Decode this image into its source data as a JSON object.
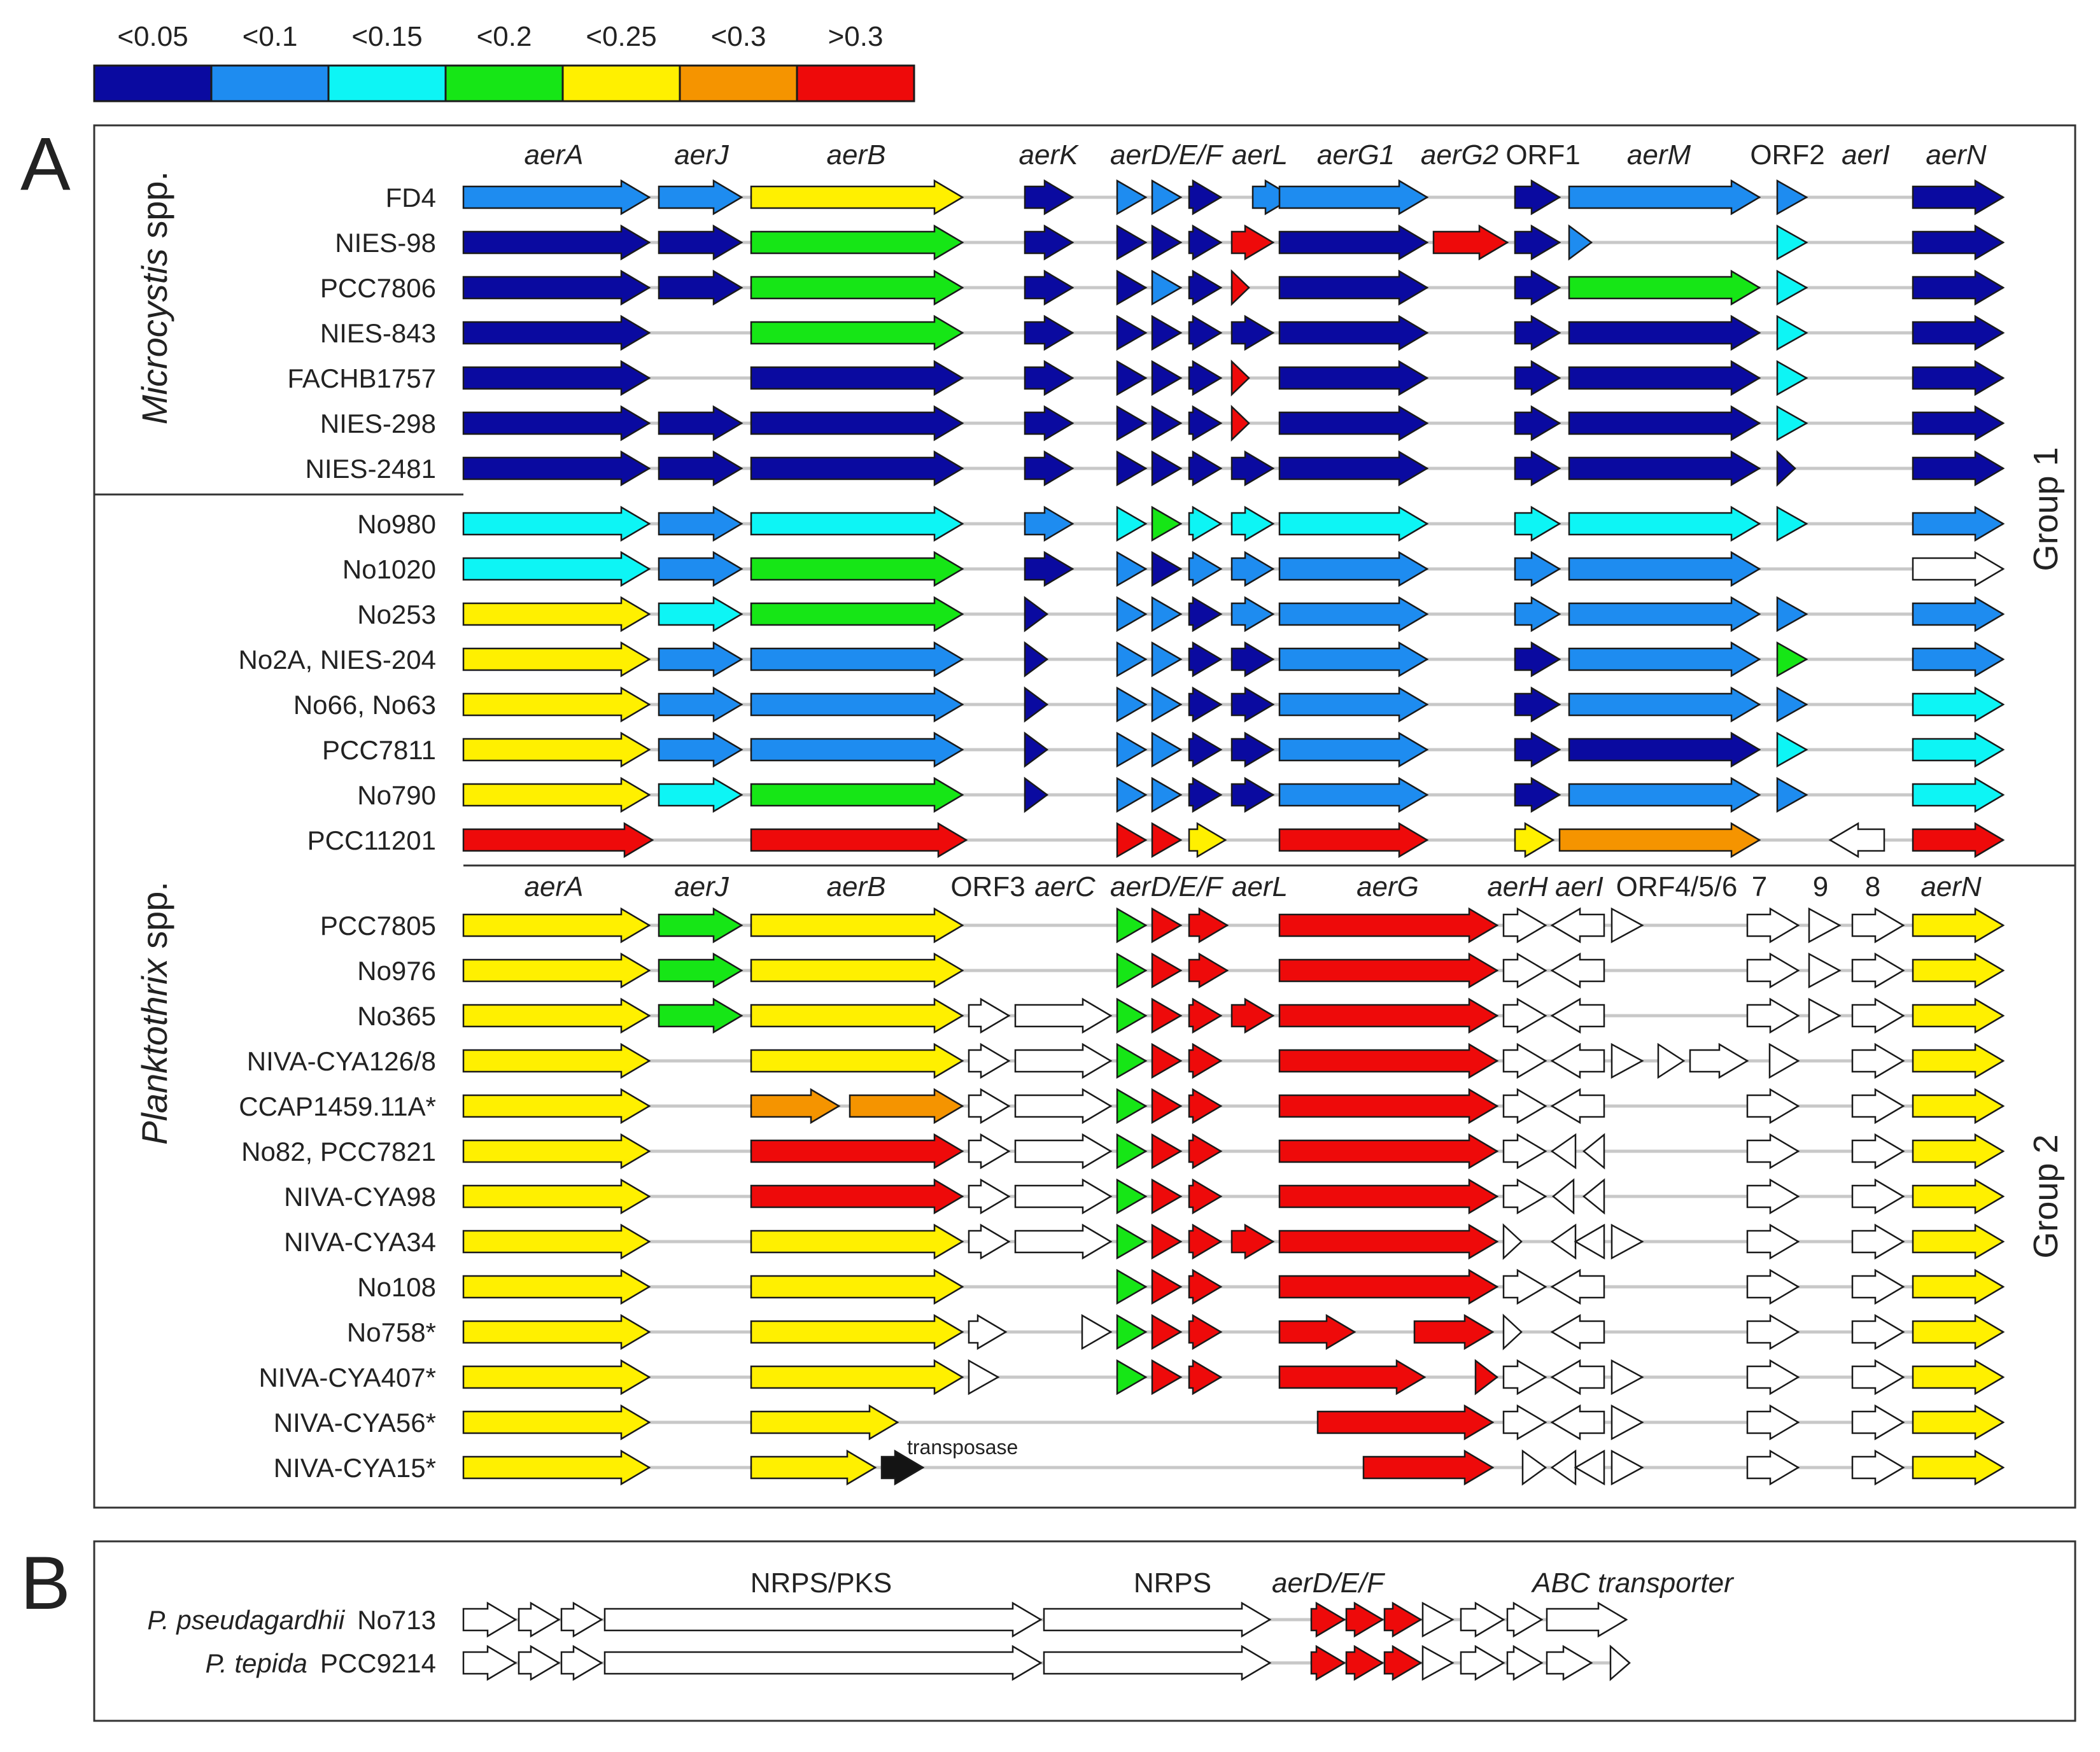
{
  "colors": {
    "c1": "#0a0aa0",
    "c2": "#1e8cf0",
    "c3": "#0df5f5",
    "c4": "#16e616",
    "c5": "#fff000",
    "c6": "#f59400",
    "c7": "#ee0a0a",
    "w": "#ffffff",
    "k": "#141414"
  },
  "legend": {
    "items": [
      {
        "label": "<0.05",
        "color": "c1"
      },
      {
        "label": "<0.1",
        "color": "c2"
      },
      {
        "label": "<0.15",
        "color": "c3"
      },
      {
        "label": "<0.2",
        "color": "c4"
      },
      {
        "label": "<0.25",
        "color": "c5"
      },
      {
        "label": "<0.3",
        "color": "c6"
      },
      {
        "label": ">0.3",
        "color": "c7"
      }
    ]
  },
  "panel_a": {
    "letter": "A",
    "group1_label": "Group 1",
    "group2_label": "Group 2",
    "genus_microcystis": {
      "name": "Microcystis",
      "suffix": " spp."
    },
    "genus_planktothrix": {
      "name": "Planktothrix",
      "suffix": " spp."
    },
    "transposase_label": "transposase",
    "gene_headers_group1": [
      {
        "text": "aerA",
        "italic": true
      },
      {
        "text": "aerJ",
        "italic": true
      },
      {
        "text": "aerB",
        "italic": true
      },
      {
        "text": "aerK",
        "italic": true
      },
      {
        "text": "aerD/E/F",
        "italic": true
      },
      {
        "text": "aerL",
        "italic": true
      },
      {
        "text": "aerG1",
        "italic": true
      },
      {
        "text": "aerG2",
        "italic": true
      },
      {
        "text": "ORF1",
        "italic": false
      },
      {
        "text": "aerM",
        "italic": true
      },
      {
        "text": "ORF2",
        "italic": false
      },
      {
        "text": "aerI",
        "italic": true
      },
      {
        "text": "aerN",
        "italic": true
      }
    ],
    "gene_headers_group2": [
      {
        "text": "aerA",
        "italic": true
      },
      {
        "text": "aerJ",
        "italic": true
      },
      {
        "text": "aerB",
        "italic": true
      },
      {
        "text": "ORF3",
        "italic": false
      },
      {
        "text": "aerC",
        "italic": true
      },
      {
        "text": "aerD/E/F",
        "italic": true
      },
      {
        "text": "aerL",
        "italic": true
      },
      {
        "text": "aerG",
        "italic": true
      },
      {
        "text": "aerH",
        "italic": true
      },
      {
        "text": "aerI",
        "italic": true
      },
      {
        "text": "ORF4/5/6",
        "italic": false
      },
      {
        "text": "7",
        "italic": false
      },
      {
        "text": "9",
        "italic": false
      },
      {
        "text": "8",
        "italic": false
      },
      {
        "text": "aerN",
        "italic": true
      }
    ],
    "strains_microcystis": [
      "FD4",
      "NIES-98",
      "PCC7806",
      "NIES-843",
      "FACHB1757",
      "NIES-298",
      "NIES-2481"
    ],
    "strains_planktothrix_group1": [
      "No980",
      "No1020",
      "No253",
      "No2A, NIES-204",
      "No66, No63",
      "PCC7811",
      "No790",
      "PCC11201"
    ],
    "strains_planktothrix_group2": [
      "PCC7805",
      "No976",
      "No365",
      "NIVA-CYA126/8",
      "CCAP1459.11A*",
      "No82, PCC7821",
      "NIVA-CYA98",
      "NIVA-CYA34",
      "No108",
      "No758*",
      "NIVA-CYA407*",
      "NIVA-CYA56*",
      "NIVA-CYA15*"
    ],
    "group1_colors": [
      [
        "c2",
        "c2",
        "c5",
        "c1",
        "c2",
        "c2",
        "c1",
        "c2",
        "c2",
        "c1",
        "c2",
        "c2",
        "c1"
      ],
      [
        "c1",
        "c1",
        "c4",
        "c1",
        "c1",
        "c1",
        "c1",
        "c7",
        "c1",
        "c7",
        "c1",
        "c2",
        "c3",
        "c1"
      ],
      [
        "c1",
        "c1",
        "c4",
        "c1",
        "c1",
        "c2",
        "c1",
        "c7",
        "c1",
        "c1",
        "c4",
        "c3",
        "c1"
      ],
      [
        "c1",
        "c4",
        "c1",
        "c1",
        "c1",
        "c1",
        "c1",
        "c1",
        "c1",
        "c1",
        "c3",
        "c1"
      ],
      [
        "c1",
        "c1",
        "c1",
        "c1",
        "c1",
        "c1",
        "c7",
        "c1",
        "c1",
        "c1",
        "c3",
        "c1"
      ],
      [
        "c1",
        "c1",
        "c1",
        "c1",
        "c1",
        "c1",
        "c1",
        "c7",
        "c1",
        "c1",
        "c1",
        "c3",
        "c1"
      ],
      [
        "c1",
        "c1",
        "c1",
        "c1",
        "c1",
        "c1",
        "c1",
        "c1",
        "c1",
        "c1",
        "c1",
        "c1",
        "c1"
      ],
      [
        "c3",
        "c2",
        "c3",
        "c2",
        "c3",
        "c4",
        "c3",
        "c3",
        "c3",
        "c3",
        "c3",
        "c3",
        "c2"
      ],
      [
        "c3",
        "c2",
        "c4",
        "c1",
        "c2",
        "c1",
        "c2",
        "c2",
        "c2",
        "c2",
        "c2"
      ],
      [
        "c5",
        "c3",
        "c4",
        "c1",
        "c2",
        "c2",
        "c1",
        "c2",
        "c2",
        "c2",
        "c2",
        "c2",
        "c2"
      ],
      [
        "c5",
        "c2",
        "c2",
        "c1",
        "c2",
        "c2",
        "c1",
        "c1",
        "c2",
        "c1",
        "c2",
        "c4",
        "c2"
      ],
      [
        "c5",
        "c2",
        "c2",
        "c1",
        "c2",
        "c2",
        "c1",
        "c1",
        "c2",
        "c1",
        "c2",
        "c2",
        "c3"
      ],
      [
        "c5",
        "c2",
        "c2",
        "c1",
        "c2",
        "c2",
        "c1",
        "c1",
        "c2",
        "c1",
        "c1",
        "c3",
        "c3"
      ],
      [
        "c5",
        "c3",
        "c4",
        "c1",
        "c2",
        "c2",
        "c1",
        "c1",
        "c2",
        "c1",
        "c2",
        "c2",
        "c3"
      ],
      [
        "c7",
        "c7",
        "c7",
        "c7",
        "c5",
        "c7",
        "c5",
        "c6",
        "w",
        "c7"
      ]
    ],
    "group2_colors": [
      [
        "c5",
        "c4",
        "c5",
        "c4",
        "c7",
        "c7",
        "c7",
        "w",
        "w",
        "w",
        "w",
        "w",
        "w",
        "c5"
      ],
      [
        "c5",
        "c4",
        "c5",
        "c4",
        "c7",
        "c7",
        "c7",
        "w",
        "w",
        "w",
        "w",
        "w",
        "c5"
      ],
      [
        "c5",
        "c4",
        "c5",
        "w",
        "w",
        "c4",
        "c7",
        "c7",
        "c7",
        "c7",
        "w",
        "w",
        "w",
        "w",
        "w",
        "c5"
      ],
      [
        "c5",
        "c5",
        "w",
        "w",
        "c4",
        "c7",
        "c7",
        "c7",
        "w",
        "w",
        "w",
        "w",
        "w",
        "w",
        "w",
        "c5"
      ],
      [
        "c5",
        "c6",
        "c6",
        "w",
        "w",
        "c4",
        "c7",
        "c7",
        "c7",
        "w",
        "w",
        "w",
        "w",
        "c5"
      ],
      [
        "c5",
        "c7",
        "w",
        "w",
        "c4",
        "c7",
        "c7",
        "c7",
        "w",
        "w",
        "w",
        "w",
        "w",
        "c5"
      ],
      [
        "c5",
        "c7",
        "w",
        "w",
        "c4",
        "c7",
        "c7",
        "c7",
        "w",
        "w",
        "w",
        "w",
        "w",
        "c5"
      ],
      [
        "c5",
        "c5",
        "w",
        "w",
        "c4",
        "c7",
        "c7",
        "c7",
        "c7",
        "w",
        "w",
        "w",
        "w",
        "w",
        "w",
        "c5"
      ],
      [
        "c5",
        "c5",
        "c4",
        "c7",
        "c7",
        "c7",
        "w",
        "w",
        "w",
        "w",
        "c5"
      ],
      [
        "c5",
        "c5",
        "w",
        "w",
        "c4",
        "c7",
        "c7",
        "c7",
        "c7",
        "w",
        "w",
        "w",
        "w",
        "c5"
      ],
      [
        "c5",
        "c5",
        "w",
        "c4",
        "c7",
        "c7",
        "c7",
        "c7",
        "w",
        "w",
        "w",
        "w",
        "w",
        "c5"
      ],
      [
        "c5",
        "c5",
        "c7",
        "w",
        "w",
        "w",
        "w",
        "w",
        "c5"
      ],
      [
        "c5",
        "c5",
        "k",
        "c7",
        "w",
        "w",
        "w",
        "w",
        "w",
        "w",
        "c5"
      ]
    ]
  },
  "panel_b": {
    "letter": "B",
    "headers": [
      {
        "text": "NRPS/PKS",
        "italic": false
      },
      {
        "text": "NRPS",
        "italic": false
      },
      {
        "text": "aerD/E/F",
        "italic": true
      },
      {
        "text": "ABC transporter",
        "italic": true
      }
    ],
    "strains": [
      {
        "species": "P. pseudagardhii",
        "strain": "No713"
      },
      {
        "species": "P. tepida",
        "strain": "PCC9214"
      }
    ],
    "row_colors": [
      [
        "w",
        "w",
        "w",
        "w",
        "w",
        "c7",
        "c7",
        "c7",
        "w",
        "w",
        "w",
        "w"
      ],
      [
        "w",
        "w",
        "w",
        "w",
        "w",
        "c7",
        "c7",
        "c7",
        "w",
        "w",
        "w",
        "w",
        "w"
      ]
    ]
  }
}
